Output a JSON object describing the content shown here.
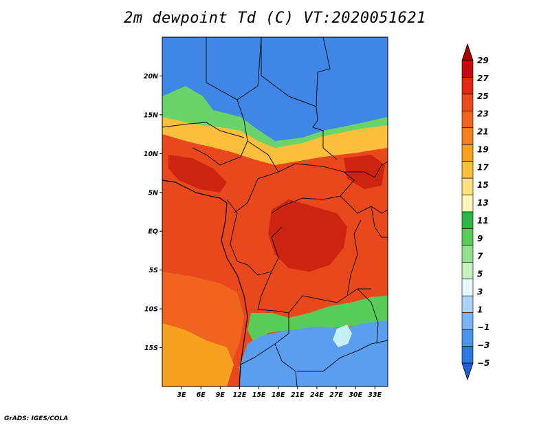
{
  "title": "2m dewpoint Td (C) VT:2020051621",
  "footer": "GrADS: IGES/COLA",
  "map": {
    "lat_range": [
      -20,
      25
    ],
    "lon_range": [
      0,
      35
    ],
    "lat_ticks": [
      {
        "value": 20,
        "label": "20N"
      },
      {
        "value": 15,
        "label": "15N"
      },
      {
        "value": 10,
        "label": "10N"
      },
      {
        "value": 5,
        "label": "5N"
      },
      {
        "value": 0,
        "label": "EQ"
      },
      {
        "value": -5,
        "label": "5S"
      },
      {
        "value": -10,
        "label": "10S"
      },
      {
        "value": -15,
        "label": "15S"
      }
    ],
    "lon_ticks": [
      {
        "value": 3,
        "label": "3E"
      },
      {
        "value": 6,
        "label": "6E"
      },
      {
        "value": 9,
        "label": "9E"
      },
      {
        "value": 12,
        "label": "12E"
      },
      {
        "value": 15,
        "label": "15E"
      },
      {
        "value": 18,
        "label": "18E"
      },
      {
        "value": 21,
        "label": "21E"
      },
      {
        "value": 24,
        "label": "24E"
      },
      {
        "value": 27,
        "label": "27E"
      },
      {
        "value": 30,
        "label": "30E"
      },
      {
        "value": 33,
        "label": "33E"
      }
    ]
  },
  "colorbar": {
    "labels": [
      "29",
      "27",
      "25",
      "23",
      "21",
      "19",
      "17",
      "15",
      "13",
      "11",
      "9",
      "7",
      "5",
      "3",
      "1",
      "−1",
      "−3",
      "−5"
    ],
    "colors": [
      "#a50000",
      "#c40e0e",
      "#e02a14",
      "#eb4a1c",
      "#f0641e",
      "#f5821e",
      "#f8a020",
      "#fbbf3c",
      "#fde07a",
      "#fdf5b6",
      "#2eb64a",
      "#58cc58",
      "#92e08c",
      "#c6f0c2",
      "#e4f8fe",
      "#aad2f8",
      "#78b4f4",
      "#4a96ec",
      "#2f78e0",
      "#1e5ed2"
    ]
  },
  "regions": {
    "sahara": "#3f86e6",
    "sahel_green": "#6ad46a",
    "sahel_yellow": "#fbbf3c",
    "tropics": "#e8481c",
    "congo_core": "#cc2410",
    "south_orange": "#f0641e",
    "south_gold": "#f8a020",
    "south_blue": "#5a9ef0",
    "south_green": "#58cc58",
    "lake": "#c6f0f8"
  }
}
